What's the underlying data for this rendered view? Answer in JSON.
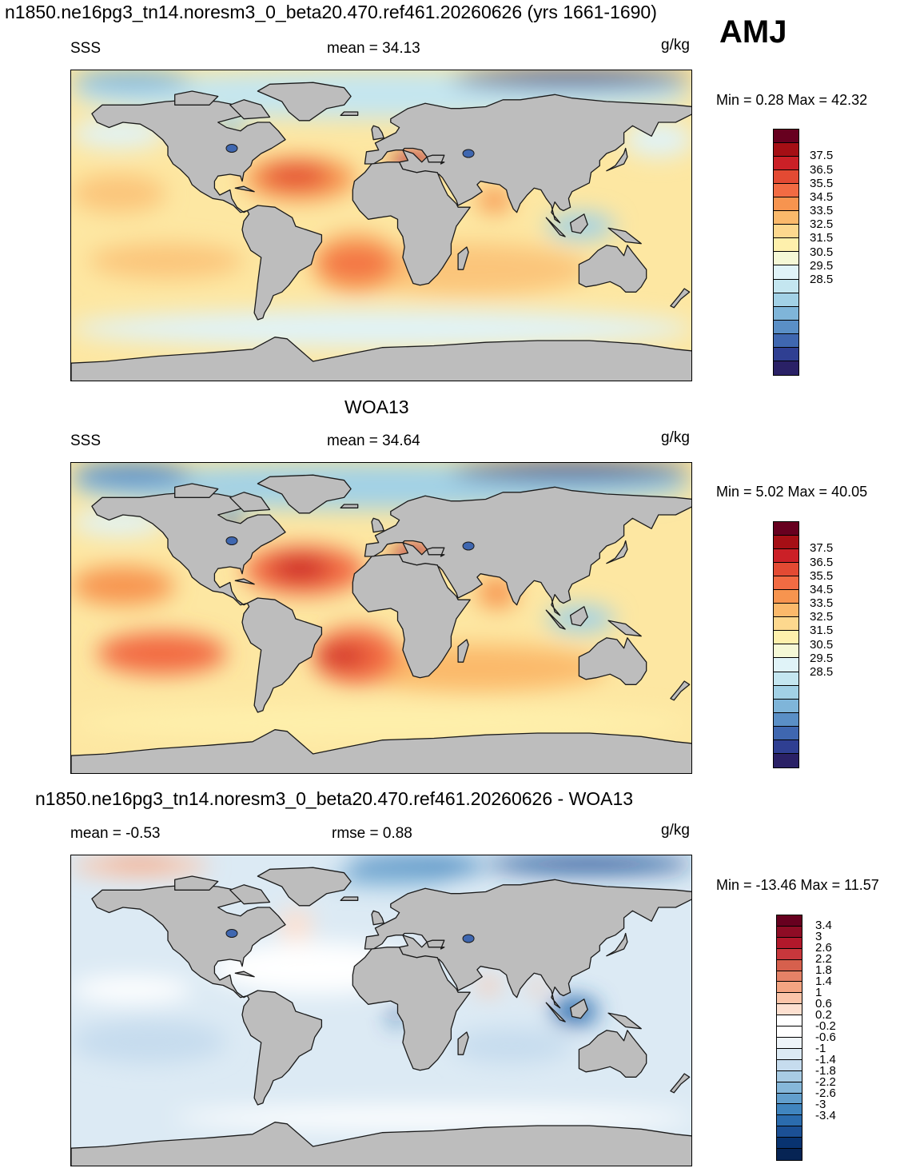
{
  "header": {
    "title": "n1850.ne16pg3_tn14.noresm3_0_beta20.470.ref461.20260626 (yrs 1661-1690)",
    "season": "AMJ"
  },
  "panels": [
    {
      "id": "model",
      "heading": "",
      "variable": "SSS",
      "stat": "mean =  34.13",
      "units": "g/kg",
      "minmax": "Min =   0.28 Max =  42.32",
      "colorbar": "sss"
    },
    {
      "id": "obs",
      "heading": "WOA13",
      "variable": "SSS",
      "stat": "mean =  34.64",
      "units": "g/kg",
      "minmax": "Min =   5.02 Max =  40.05",
      "colorbar": "sss"
    },
    {
      "id": "diff",
      "heading": "n1850.ne16pg3_tn14.noresm3_0_beta20.470.ref461.20260626 - WOA13",
      "variable": "mean =  -0.53",
      "stat": "rmse =   0.88",
      "units": "g/kg",
      "minmax": "Min = -13.46 Max =  11.57",
      "colorbar": "diff"
    }
  ],
  "colorbars": {
    "sss": {
      "colors": [
        "#67001f",
        "#a50f15",
        "#cb2027",
        "#e34a33",
        "#f26b43",
        "#f7944f",
        "#fbb96b",
        "#fdd88e",
        "#fef0ac",
        "#f5f8d6",
        "#e0f3f8",
        "#c4e6f0",
        "#a2d1e6",
        "#7fb5d9",
        "#5a8fc6",
        "#3f67b0",
        "#2f3f92",
        "#2a2166"
      ],
      "labels": [
        "37.5",
        "36.5",
        "35.5",
        "34.5",
        "33.5",
        "32.5",
        "31.5",
        "30.5",
        "29.5",
        "28.5"
      ]
    },
    "diff": {
      "colors": [
        "#67001f",
        "#8e0c25",
        "#b2182b",
        "#c8373c",
        "#d6604d",
        "#e58267",
        "#f4a582",
        "#fbc5a9",
        "#fde0d0",
        "#ffffff",
        "#ffffff",
        "#eef4f9",
        "#dceaf4",
        "#c6dcee",
        "#a8cce4",
        "#86b8da",
        "#629fcd",
        "#4085bf",
        "#2b6cae",
        "#1b5095",
        "#083370",
        "#062454"
      ],
      "labels": [
        "3.4",
        "3",
        "2.6",
        "2.2",
        "1.8",
        "1.4",
        "1",
        "0.6",
        "0.2",
        "-0.2",
        "-0.6",
        "-1",
        "-1.4",
        "-1.8",
        "-2.2",
        "-2.6",
        "-3",
        "-3.4"
      ]
    }
  }
}
